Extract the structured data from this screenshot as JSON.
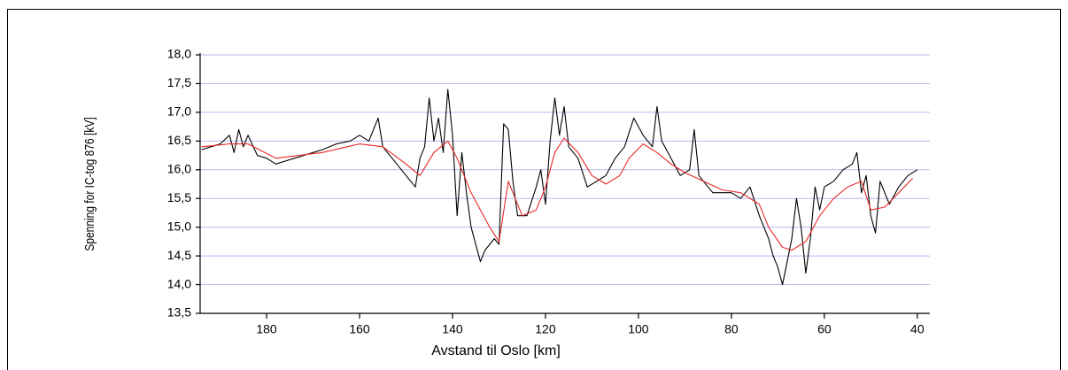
{
  "chart_data": {
    "type": "line",
    "x_label": "Avstand til Oslo [km]",
    "y_label": "Spenning for IC-tog 876 [kV]",
    "xlim": [
      194.3,
      37.3
    ],
    "ylim": [
      13.5,
      18.0
    ],
    "xticks": [
      180,
      160,
      140,
      120,
      100,
      80,
      60,
      40
    ],
    "yticks": [
      {
        "value": 13.5,
        "label": "13,5"
      },
      {
        "value": 14.0,
        "label": "14,0"
      },
      {
        "value": 14.5,
        "label": "14,5"
      },
      {
        "value": 15.0,
        "label": "15,0"
      },
      {
        "value": 15.5,
        "label": "15,5"
      },
      {
        "value": 16.0,
        "label": "16,0"
      },
      {
        "value": 16.5,
        "label": "16,5"
      },
      {
        "value": 17.0,
        "label": "17,0"
      },
      {
        "value": 17.5,
        "label": "17,5"
      },
      {
        "value": 18.0,
        "label": "18,0"
      }
    ],
    "grid": true,
    "series": [
      {
        "color": "#000000",
        "x": [
          194,
          192,
          190,
          188,
          187,
          186,
          185,
          184,
          182,
          180,
          178,
          176,
          174,
          172,
          170,
          168,
          165,
          162,
          160,
          158,
          156,
          155,
          153,
          151,
          149,
          148,
          147,
          146,
          145,
          144,
          143,
          142,
          141,
          140,
          139,
          138,
          137,
          136,
          135,
          134,
          133,
          132,
          131,
          130,
          129,
          128,
          127,
          126,
          124,
          122,
          121,
          120,
          119,
          118,
          117,
          116,
          115,
          113,
          111,
          109,
          107,
          105,
          103,
          101,
          99,
          97,
          96,
          95,
          93,
          91,
          89,
          88,
          87,
          86,
          84,
          82,
          80,
          78,
          76,
          74,
          72,
          71,
          70,
          69,
          68,
          67,
          66,
          65,
          64,
          63,
          62,
          61,
          60,
          58,
          56,
          54,
          53,
          52,
          51,
          50,
          49,
          48,
          46,
          44,
          42,
          40
        ],
        "values": [
          16.35,
          16.4,
          16.45,
          16.6,
          16.3,
          16.7,
          16.4,
          16.6,
          16.25,
          16.2,
          16.1,
          16.15,
          16.2,
          16.25,
          16.3,
          16.35,
          16.45,
          16.5,
          16.6,
          16.5,
          16.9,
          16.4,
          16.2,
          16.0,
          15.8,
          15.7,
          16.2,
          16.4,
          17.25,
          16.5,
          16.9,
          16.3,
          17.4,
          16.6,
          15.2,
          16.3,
          15.6,
          15.0,
          14.7,
          14.4,
          14.6,
          14.7,
          14.8,
          14.7,
          16.8,
          16.7,
          15.8,
          15.2,
          15.2,
          15.7,
          16.0,
          15.4,
          16.5,
          17.25,
          16.6,
          17.1,
          16.4,
          16.2,
          15.7,
          15.8,
          15.9,
          16.2,
          16.4,
          16.9,
          16.6,
          16.4,
          17.1,
          16.5,
          16.2,
          15.9,
          16.0,
          16.7,
          15.9,
          15.8,
          15.6,
          15.6,
          15.6,
          15.5,
          15.7,
          15.2,
          14.8,
          14.5,
          14.3,
          14.0,
          14.4,
          14.8,
          15.5,
          15.0,
          14.2,
          14.8,
          15.7,
          15.3,
          15.7,
          15.8,
          16.0,
          16.1,
          16.3,
          15.6,
          15.9,
          15.2,
          14.9,
          15.8,
          15.4,
          15.7,
          15.9,
          16.0
        ]
      },
      {
        "color": "#e8282a",
        "x": [
          194,
          188,
          184,
          178,
          168,
          160,
          155,
          150,
          147,
          144,
          141,
          139,
          136,
          132,
          130,
          128,
          125,
          122,
          120,
          118,
          116,
          113,
          110,
          107,
          104,
          102,
          99,
          96,
          93,
          90,
          86,
          82,
          78,
          74,
          72,
          69,
          67,
          64,
          61,
          58,
          55,
          52,
          50,
          47,
          44,
          41
        ],
        "values": [
          16.4,
          16.45,
          16.45,
          16.2,
          16.3,
          16.45,
          16.4,
          16.1,
          15.9,
          16.3,
          16.5,
          16.2,
          15.6,
          15.0,
          14.75,
          15.8,
          15.2,
          15.3,
          15.7,
          16.3,
          16.55,
          16.3,
          15.9,
          15.75,
          15.9,
          16.2,
          16.45,
          16.3,
          16.1,
          15.95,
          15.8,
          15.65,
          15.6,
          15.4,
          15.0,
          14.65,
          14.6,
          14.75,
          15.2,
          15.5,
          15.7,
          15.8,
          15.3,
          15.35,
          15.6,
          15.85
        ]
      }
    ]
  }
}
